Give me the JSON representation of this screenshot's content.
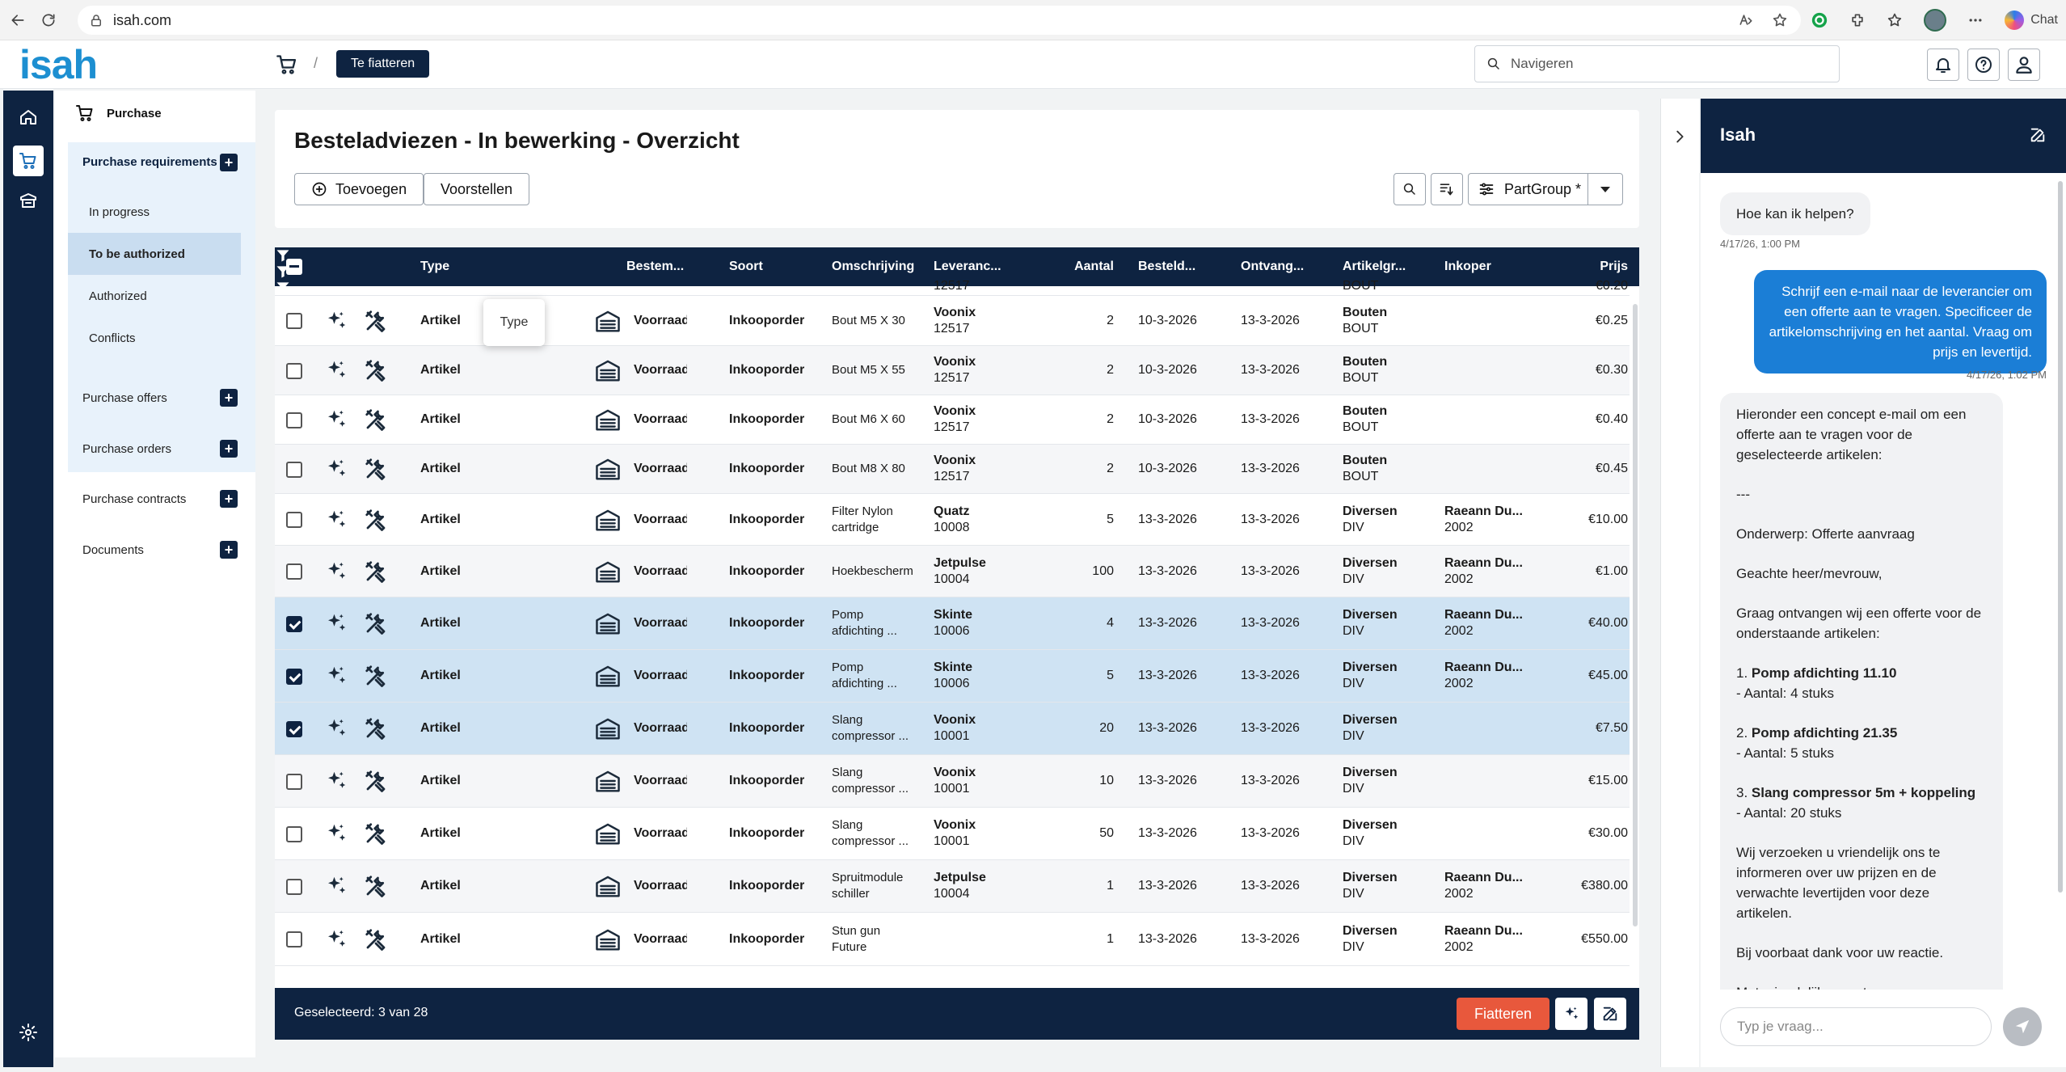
{
  "browser": {
    "url": "isah.com",
    "chat_label": "Chat"
  },
  "app": {
    "logo": "isah",
    "header_button": "Te fiatteren",
    "nav_search_placeholder": "Navigeren"
  },
  "sidebar": {
    "title": "Purchase",
    "items": [
      {
        "label": "Purchase requirements"
      },
      {
        "label": "In progress"
      },
      {
        "label": "To be authorized"
      },
      {
        "label": "Authorized"
      },
      {
        "label": "Conflicts"
      },
      {
        "label": "Purchase offers"
      },
      {
        "label": "Purchase orders"
      },
      {
        "label": "Purchase contracts"
      },
      {
        "label": "Documents"
      }
    ]
  },
  "main": {
    "title": "Besteladviezen - In bewerking - Overzicht",
    "add_label": "Toevoegen",
    "propose_label": "Voorstellen",
    "partgroup_label": "PartGroup *"
  },
  "table": {
    "columns": [
      "Type",
      "Bestem...",
      "Soort",
      "Omschrijving",
      "Leveranc...",
      "Aantal",
      "Besteld...",
      "Ontvang...",
      "Artikelgr...",
      "Inkoper",
      "Prijs"
    ],
    "partial_row": {
      "leverancier": "12517",
      "artikelgroep": "BOUT",
      "prijs": "€0.20"
    },
    "rows": [
      {
        "checked": false,
        "type": "Artikel",
        "bestemming": "Voorraad",
        "soort": "Inkooporder",
        "omschrijving": [
          "Bout M5 X 30"
        ],
        "leverancier": [
          "Voonix",
          "12517"
        ],
        "aantal": "2",
        "besteld": "10-3-2026",
        "ontvangst": "13-3-2026",
        "artikelgroep": [
          "Bouten",
          "BOUT"
        ],
        "inkoper": [
          "",
          ""
        ],
        "prijs": "€0.25"
      },
      {
        "checked": false,
        "type": "Artikel",
        "bestemming": "Voorraad",
        "soort": "Inkooporder",
        "omschrijving": [
          "Bout M5 X 55"
        ],
        "leverancier": [
          "Voonix",
          "12517"
        ],
        "aantal": "2",
        "besteld": "10-3-2026",
        "ontvangst": "13-3-2026",
        "artikelgroep": [
          "Bouten",
          "BOUT"
        ],
        "inkoper": [
          "",
          ""
        ],
        "prijs": "€0.30"
      },
      {
        "checked": false,
        "type": "Artikel",
        "bestemming": "Voorraad",
        "soort": "Inkooporder",
        "omschrijving": [
          "Bout M6 X 60"
        ],
        "leverancier": [
          "Voonix",
          "12517"
        ],
        "aantal": "2",
        "besteld": "10-3-2026",
        "ontvangst": "13-3-2026",
        "artikelgroep": [
          "Bouten",
          "BOUT"
        ],
        "inkoper": [
          "",
          ""
        ],
        "prijs": "€0.40"
      },
      {
        "checked": false,
        "type": "Artikel",
        "bestemming": "Voorraad",
        "soort": "Inkooporder",
        "omschrijving": [
          "Bout M8 X 80"
        ],
        "leverancier": [
          "Voonix",
          "12517"
        ],
        "aantal": "2",
        "besteld": "10-3-2026",
        "ontvangst": "13-3-2026",
        "artikelgroep": [
          "Bouten",
          "BOUT"
        ],
        "inkoper": [
          "",
          ""
        ],
        "prijs": "€0.45"
      },
      {
        "checked": false,
        "type": "Artikel",
        "bestemming": "Voorraad",
        "soort": "Inkooporder",
        "omschrijving": [
          "Filter Nylon",
          "cartridge"
        ],
        "leverancier": [
          "Quatz",
          "10008"
        ],
        "aantal": "5",
        "besteld": "13-3-2026",
        "ontvangst": "13-3-2026",
        "artikelgroep": [
          "Diversen",
          "DIV"
        ],
        "inkoper": [
          "Raeann Du...",
          "2002"
        ],
        "prijs": "€10.00"
      },
      {
        "checked": false,
        "type": "Artikel",
        "bestemming": "Voorraad",
        "soort": "Inkooporder",
        "omschrijving": [
          "Hoekbeschermer"
        ],
        "leverancier": [
          "Jetpulse",
          "10004"
        ],
        "aantal": "100",
        "besteld": "13-3-2026",
        "ontvangst": "13-3-2026",
        "artikelgroep": [
          "Diversen",
          "DIV"
        ],
        "inkoper": [
          "Raeann Du...",
          "2002"
        ],
        "prijs": "€1.00"
      },
      {
        "checked": true,
        "type": "Artikel",
        "bestemming": "Voorraad",
        "soort": "Inkooporder",
        "omschrijving": [
          "Pomp",
          "afdichting ..."
        ],
        "leverancier": [
          "Skinte",
          "10006"
        ],
        "aantal": "4",
        "besteld": "13-3-2026",
        "ontvangst": "13-3-2026",
        "artikelgroep": [
          "Diversen",
          "DIV"
        ],
        "inkoper": [
          "Raeann Du...",
          "2002"
        ],
        "prijs": "€40.00"
      },
      {
        "checked": true,
        "type": "Artikel",
        "bestemming": "Voorraad",
        "soort": "Inkooporder",
        "omschrijving": [
          "Pomp",
          "afdichting ..."
        ],
        "leverancier": [
          "Skinte",
          "10006"
        ],
        "aantal": "5",
        "besteld": "13-3-2026",
        "ontvangst": "13-3-2026",
        "artikelgroep": [
          "Diversen",
          "DIV"
        ],
        "inkoper": [
          "Raeann Du...",
          "2002"
        ],
        "prijs": "€45.00"
      },
      {
        "checked": true,
        "type": "Artikel",
        "bestemming": "Voorraad",
        "soort": "Inkooporder",
        "omschrijving": [
          "Slang",
          "compressor ..."
        ],
        "leverancier": [
          "Voonix",
          "10001"
        ],
        "aantal": "20",
        "besteld": "13-3-2026",
        "ontvangst": "13-3-2026",
        "artikelgroep": [
          "Diversen",
          "DIV"
        ],
        "inkoper": [
          "",
          ""
        ],
        "prijs": "€7.50"
      },
      {
        "checked": false,
        "type": "Artikel",
        "bestemming": "Voorraad",
        "soort": "Inkooporder",
        "omschrijving": [
          "Slang",
          "compressor ..."
        ],
        "leverancier": [
          "Voonix",
          "10001"
        ],
        "aantal": "10",
        "besteld": "13-3-2026",
        "ontvangst": "13-3-2026",
        "artikelgroep": [
          "Diversen",
          "DIV"
        ],
        "inkoper": [
          "",
          ""
        ],
        "prijs": "€15.00"
      },
      {
        "checked": false,
        "type": "Artikel",
        "bestemming": "Voorraad",
        "soort": "Inkooporder",
        "omschrijving": [
          "Slang",
          "compressor ..."
        ],
        "leverancier": [
          "Voonix",
          "10001"
        ],
        "aantal": "50",
        "besteld": "13-3-2026",
        "ontvangst": "13-3-2026",
        "artikelgroep": [
          "Diversen",
          "DIV"
        ],
        "inkoper": [
          "",
          ""
        ],
        "prijs": "€30.00"
      },
      {
        "checked": false,
        "type": "Artikel",
        "bestemming": "Voorraad",
        "soort": "Inkooporder",
        "omschrijving": [
          "Spruitmodule",
          "schiller"
        ],
        "leverancier": [
          "Jetpulse",
          "10004"
        ],
        "aantal": "1",
        "besteld": "13-3-2026",
        "ontvangst": "13-3-2026",
        "artikelgroep": [
          "Diversen",
          "DIV"
        ],
        "inkoper": [
          "Raeann Du...",
          "2002"
        ],
        "prijs": "€380.00"
      },
      {
        "checked": false,
        "type": "Artikel",
        "bestemming": "Voorraad",
        "soort": "Inkooporder",
        "omschrijving": [
          "Stun gun",
          "Future"
        ],
        "leverancier": [
          "",
          ""
        ],
        "aantal": "1",
        "besteld": "13-3-2026",
        "ontvangst": "13-3-2026",
        "artikelgroep": [
          "Diversen",
          "DIV"
        ],
        "inkoper": [
          "Raeann Du...",
          "2002"
        ],
        "prijs": "€550.00"
      }
    ],
    "tooltip": "Type",
    "selected_text": "Geselecteerd: 3 van 28",
    "approve_label": "Fiatteren"
  },
  "chat": {
    "title": "Isah",
    "greeting": "Hoe kan ik helpen?",
    "greeting_time": "4/17/26, 1:00 PM",
    "user_message": "Schrijf een e-mail naar de leverancier om een offerte aan te vragen. Specificeer de artikelomschrijving en het aantal. Vraag om prijs en levertijd.",
    "user_time": "4/17/26, 1:02 PM",
    "reply": {
      "intro": "Hieronder een concept e-mail om een offerte aan te vragen voor de geselecteerde artikelen:",
      "separator": "---",
      "subject": "Onderwerp: Offerte aanvraag",
      "salutation": "Geachte heer/mevrouw,",
      "request": "Graag ontvangen wij een offerte voor de onderstaande artikelen:",
      "items": [
        {
          "num": "1. ",
          "name": "Pomp afdichting 11.10",
          "qty": "- Aantal: 4 stuks"
        },
        {
          "num": "2. ",
          "name": "Pomp afdichting 21.35",
          "qty": "- Aantal: 5 stuks"
        },
        {
          "num": "3. ",
          "name": "Slang compressor 5m + koppeling",
          "qty": "- Aantal: 20 stuks"
        }
      ],
      "closing_request": "Wij verzoeken u vriendelijk ons te informeren over uw prijzen en de verwachte levertijden voor deze artikelen.",
      "thanks": "Bij voorbaat dank voor uw reactie.",
      "signoff": "Met vriendelijke groet,"
    },
    "input_placeholder": "Typ je vraag..."
  }
}
